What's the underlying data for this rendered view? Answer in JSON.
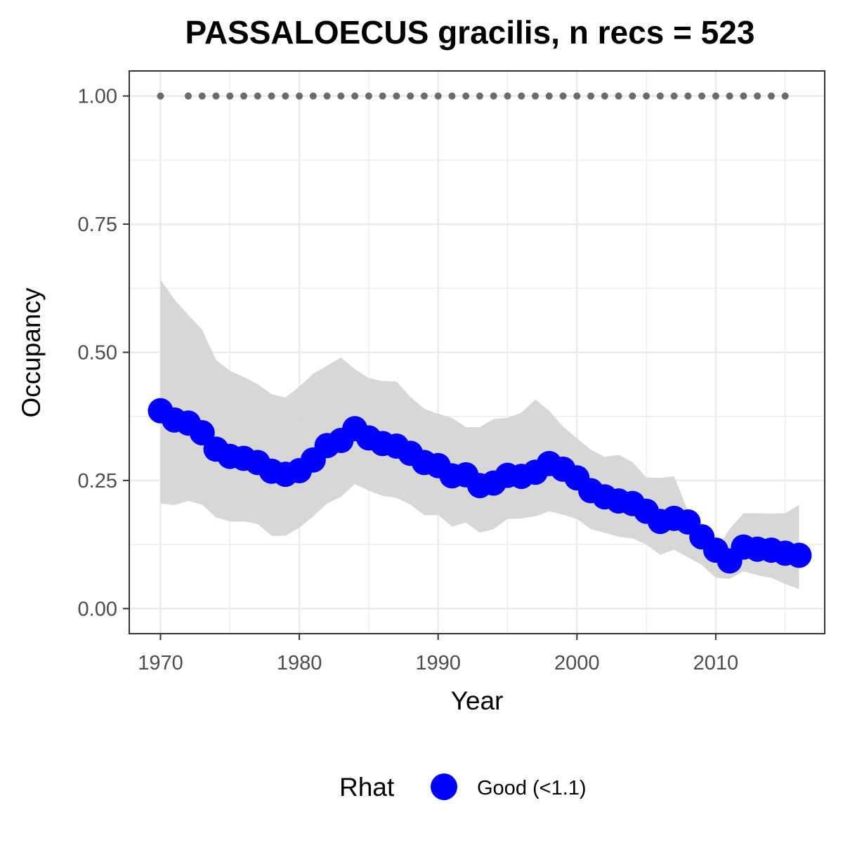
{
  "chart_data": {
    "type": "line",
    "title": "PASSALOECUS gracilis, n recs = 523",
    "xlabel": "Year",
    "ylabel": "Occupancy",
    "xlim": [
      1967.8,
      2017.8
    ],
    "ylim": [
      -0.0475,
      1.0475
    ],
    "x_ticks": [
      1970,
      1980,
      1990,
      2000,
      2010
    ],
    "x_tick_labels": [
      "1970",
      "1980",
      "1990",
      "2000",
      "2010"
    ],
    "y_ticks": [
      0,
      0.25,
      0.5,
      0.75,
      1.0
    ],
    "y_tick_labels": [
      "0.00",
      "0.25",
      "0.50",
      "0.75",
      "1.00"
    ],
    "grid": true,
    "legend": {
      "title": "Rhat",
      "position": "bottom",
      "entries": [
        {
          "label": "Good (<1.1)",
          "color": "#0000ff"
        }
      ]
    },
    "colors": {
      "series": "#0000ff",
      "ribbon": "#d3d3d3",
      "records": "#6b6b6b",
      "panel_border": "#333333",
      "grid": "#ebebeb"
    },
    "series": [
      {
        "x": [
          1970,
          1971,
          1972,
          1973,
          1974,
          1975,
          1976,
          1977,
          1978,
          1979,
          1980,
          1981,
          1982,
          1983,
          1984,
          1985,
          1986,
          1987,
          1988,
          1989,
          1990,
          1991,
          1992,
          1993,
          1994,
          1995,
          1996,
          1997,
          1998,
          1999,
          2000,
          2001,
          2002,
          2003,
          2004,
          2005,
          2006,
          2007,
          2008,
          2009,
          2010,
          2011,
          2012,
          2013,
          2014,
          2015,
          2016
        ],
        "values": [
          0.386,
          0.368,
          0.362,
          0.343,
          0.311,
          0.297,
          0.293,
          0.285,
          0.268,
          0.262,
          0.269,
          0.29,
          0.318,
          0.328,
          0.351,
          0.333,
          0.322,
          0.317,
          0.303,
          0.285,
          0.279,
          0.259,
          0.261,
          0.24,
          0.245,
          0.26,
          0.258,
          0.266,
          0.283,
          0.272,
          0.255,
          0.23,
          0.218,
          0.21,
          0.205,
          0.19,
          0.17,
          0.176,
          0.169,
          0.14,
          0.114,
          0.093,
          0.12,
          0.116,
          0.114,
          0.108,
          0.104
        ],
        "lower": [
          0.205,
          0.202,
          0.21,
          0.203,
          0.178,
          0.17,
          0.17,
          0.165,
          0.142,
          0.142,
          0.158,
          0.18,
          0.205,
          0.218,
          0.243,
          0.23,
          0.22,
          0.216,
          0.203,
          0.182,
          0.183,
          0.16,
          0.168,
          0.148,
          0.155,
          0.175,
          0.176,
          0.18,
          0.19,
          0.183,
          0.175,
          0.155,
          0.148,
          0.14,
          0.137,
          0.125,
          0.105,
          0.115,
          0.1,
          0.085,
          0.06,
          0.058,
          0.073,
          0.065,
          0.06,
          0.048,
          0.038
        ],
        "upper": [
          0.642,
          0.603,
          0.573,
          0.544,
          0.485,
          0.464,
          0.452,
          0.438,
          0.418,
          0.412,
          0.433,
          0.458,
          0.474,
          0.49,
          0.467,
          0.45,
          0.444,
          0.443,
          0.413,
          0.39,
          0.38,
          0.372,
          0.354,
          0.354,
          0.37,
          0.372,
          0.382,
          0.408,
          0.386,
          0.355,
          0.332,
          0.31,
          0.296,
          0.3,
          0.286,
          0.256,
          0.255,
          0.258,
          0.19,
          0.15,
          0.113,
          0.155,
          0.186,
          0.186,
          0.185,
          0.186,
          0.202
        ]
      }
    ],
    "records": {
      "y": 1.0,
      "x": [
        1970,
        1972,
        1973,
        1974,
        1975,
        1976,
        1977,
        1978,
        1979,
        1980,
        1981,
        1982,
        1983,
        1984,
        1985,
        1986,
        1987,
        1988,
        1989,
        1990,
        1991,
        1992,
        1993,
        1994,
        1995,
        1996,
        1997,
        1998,
        1999,
        2000,
        2001,
        2002,
        2003,
        2004,
        2005,
        2006,
        2007,
        2008,
        2009,
        2010,
        2011,
        2012,
        2013,
        2014,
        2015
      ]
    }
  }
}
